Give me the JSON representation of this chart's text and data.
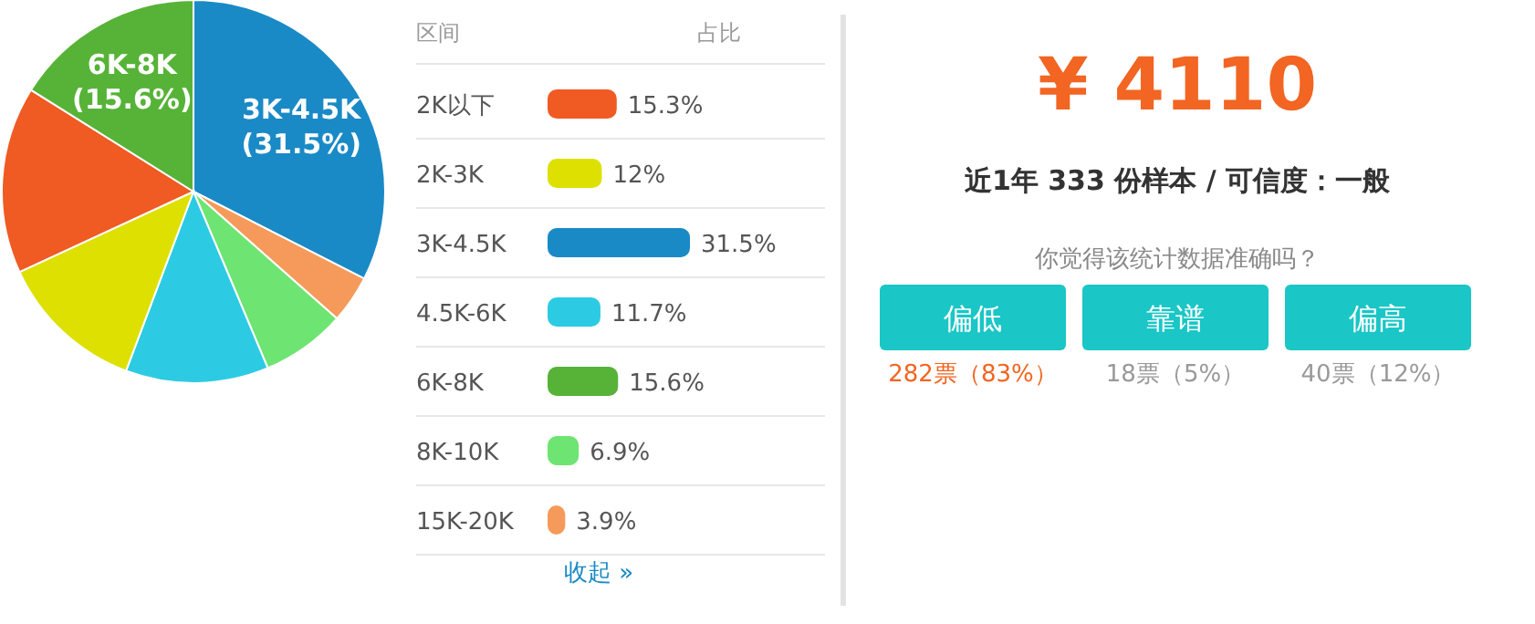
{
  "chart_data": [
    {
      "type": "pie",
      "categories": [
        "3K-4.5K",
        null,
        null,
        null,
        null,
        null,
        "6K-8K"
      ],
      "values": [
        31.5,
        3.9,
        6.9,
        11.7,
        12,
        15.3,
        15.6
      ],
      "colors": [
        "#1a8ac6",
        "#f69a5b",
        "#6ee472",
        "#2dcbe3",
        "#dde000",
        "#f05a23",
        "#56b337"
      ],
      "value_labels": [
        "(31.5%)",
        null,
        null,
        null,
        null,
        null,
        "(15.6%)"
      ]
    },
    {
      "type": "bar",
      "orientation": "horizontal",
      "ylabel": "区间",
      "xlabel": "占比",
      "categories": [
        "2K以下",
        "2K-3K",
        "3K-4.5K",
        "4.5K-6K",
        "6K-8K",
        "8K-10K",
        "15K-20K"
      ],
      "values": [
        15.3,
        12,
        31.5,
        11.7,
        15.6,
        6.9,
        3.9
      ],
      "colors": [
        "#f05a23",
        "#dde000",
        "#1a8ac6",
        "#2dcbe3",
        "#56b337",
        "#6ee472",
        "#f69a5b"
      ],
      "value_labels": [
        "15.3%",
        "12%",
        "31.5%",
        "11.7%",
        "15.6%",
        "6.9%",
        "3.9%"
      ],
      "annotations": [
        "收起 »"
      ]
    },
    {
      "type": "other",
      "title": "¥ 4110",
      "subtitle": "近1年 333 份样本 / 可信度：一般",
      "annotations": [
        "你觉得该统计数据准确吗？",
        "偏低",
        "靠谱",
        "偏高",
        "282票（83%）",
        "18票（5%）",
        "40票（12%）"
      ]
    }
  ]
}
